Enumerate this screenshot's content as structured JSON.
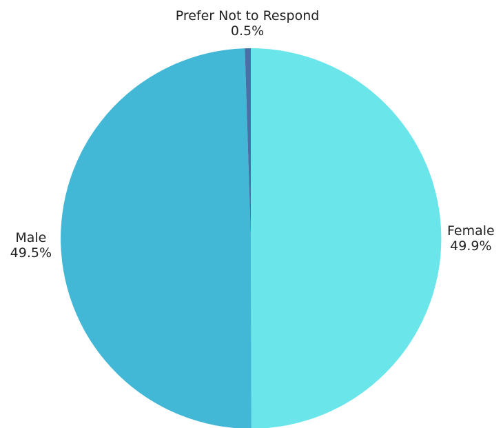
{
  "chart_data": {
    "type": "pie",
    "slices": [
      {
        "label": "Female",
        "value": 49.9,
        "value_label": "49.9%",
        "color": "#6ae6ea"
      },
      {
        "label": "Male",
        "value": 49.5,
        "value_label": "49.5%",
        "color": "#42b8d6"
      },
      {
        "label": "Prefer Not to Respond",
        "value": 0.5,
        "value_label": "0.5%",
        "color": "#4a6ea6"
      }
    ],
    "start_angle": "12 o'clock",
    "direction": "clockwise",
    "legend": "none",
    "labels": "outside"
  }
}
